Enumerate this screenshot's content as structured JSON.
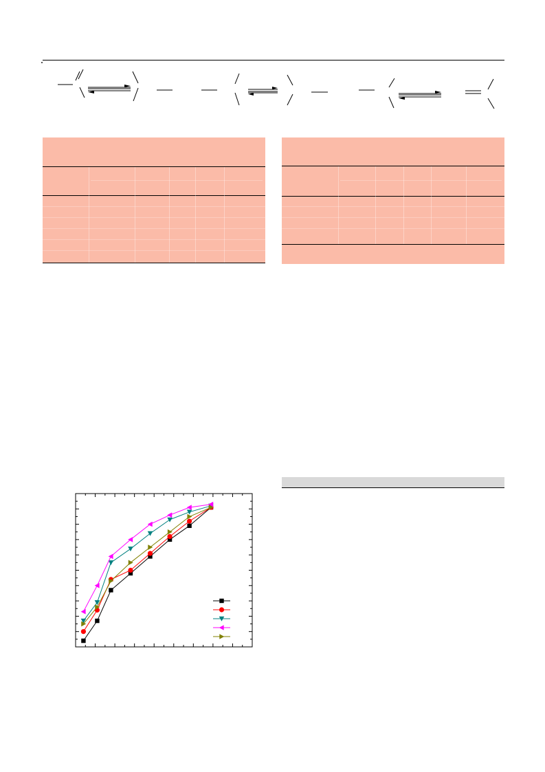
{
  "chart_data": {
    "type": "line",
    "title": "",
    "xlabel": "",
    "ylabel": "",
    "grid": false,
    "legend": "bottom-right",
    "xlim": [
      0,
      9
    ],
    "ylim": [
      0,
      100
    ],
    "x": [
      0.4,
      1.1,
      1.8,
      2.8,
      3.8,
      4.8,
      5.8,
      6.9
    ],
    "series": [
      {
        "color": "#000000",
        "marker": "square",
        "values": [
          4,
          17,
          37,
          48,
          59,
          70,
          79,
          91
        ]
      },
      {
        "color": "#ff0000",
        "marker": "circle",
        "values": [
          10,
          24,
          44,
          50,
          61,
          72,
          82,
          91
        ]
      },
      {
        "color": "#008080",
        "marker": "triangle-down",
        "values": [
          17,
          29,
          55,
          64,
          74,
          83,
          88,
          92
        ]
      },
      {
        "color": "#ff00ff",
        "marker": "triangle-left",
        "values": [
          23,
          40,
          59,
          70,
          80,
          86,
          91,
          93
        ]
      },
      {
        "color": "#808000",
        "marker": "triangle-right",
        "values": [
          15,
          26,
          43,
          55,
          65,
          75,
          85,
          91
        ]
      }
    ]
  }
}
